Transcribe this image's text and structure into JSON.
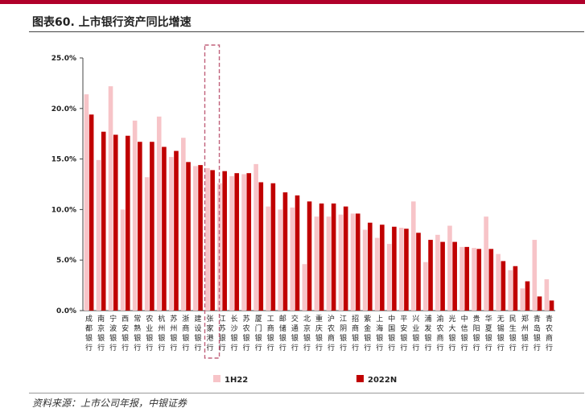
{
  "header": {
    "title": "图表60. 上市银行资产同比增速"
  },
  "footer": {
    "source": "资料来源：上市公司年报，中银证券"
  },
  "colors": {
    "series_1h22": "#f7c4c8",
    "series_2022n": "#c00000",
    "highlight_box": "#c0607a",
    "top_bar": "#b0002a"
  },
  "chart_data": {
    "type": "bar",
    "title": "",
    "xlabel": "",
    "ylabel": "",
    "ylim": [
      0,
      25
    ],
    "yticks": [
      "0.0%",
      "5.0%",
      "10.0%",
      "15.0%",
      "20.0%",
      "25.0%"
    ],
    "ytick_values": [
      0,
      5,
      10,
      15,
      20,
      25
    ],
    "legend_position": "bottom",
    "highlight_category": "张家港行",
    "categories": [
      "成都银行",
      "南京银行",
      "宁波银行",
      "西安银行",
      "常熟银行",
      "农业银行",
      "杭州银行",
      "苏州银行",
      "浙商银行",
      "建设银行",
      "张家港行",
      "江苏银行",
      "长沙银行",
      "苏农银行",
      "厦门银行",
      "工商银行",
      "邮储银行",
      "交通银行",
      "北京银行",
      "重庆银行",
      "沪农商行",
      "江阴银行",
      "招商银行",
      "紫金银行",
      "上海银行",
      "中国银行",
      "平安银行",
      "兴业银行",
      "浦发银行",
      "渝农商行",
      "光大银行",
      "中信银行",
      "贵阳银行",
      "华夏银行",
      "无锡银行",
      "民生银行",
      "郑州银行",
      "青岛银行",
      "青农商行"
    ],
    "series": [
      {
        "name": "1H22",
        "values": [
          21.4,
          14.9,
          22.2,
          10.0,
          18.8,
          13.2,
          19.2,
          15.2,
          17.1,
          14.3,
          14.1,
          12.6,
          13.3,
          13.5,
          14.5,
          10.3,
          10.0,
          10.2,
          4.6,
          9.3,
          9.3,
          9.5,
          9.6,
          8.0,
          7.2,
          6.6,
          8.2,
          10.8,
          4.8,
          7.5,
          8.4,
          6.3,
          6.2,
          9.3,
          5.6,
          4.0,
          2.2,
          7.0,
          3.1
        ]
      },
      {
        "name": "2022N",
        "values": [
          19.4,
          17.7,
          17.4,
          17.3,
          16.7,
          16.7,
          16.2,
          15.8,
          14.7,
          14.4,
          13.9,
          13.8,
          13.6,
          13.6,
          12.7,
          12.6,
          11.7,
          11.4,
          10.8,
          10.6,
          10.6,
          10.3,
          9.6,
          8.7,
          8.5,
          8.3,
          8.1,
          7.7,
          7.0,
          6.8,
          6.8,
          6.3,
          6.1,
          6.1,
          4.9,
          4.4,
          2.9,
          1.4,
          1.0
        ]
      }
    ]
  }
}
